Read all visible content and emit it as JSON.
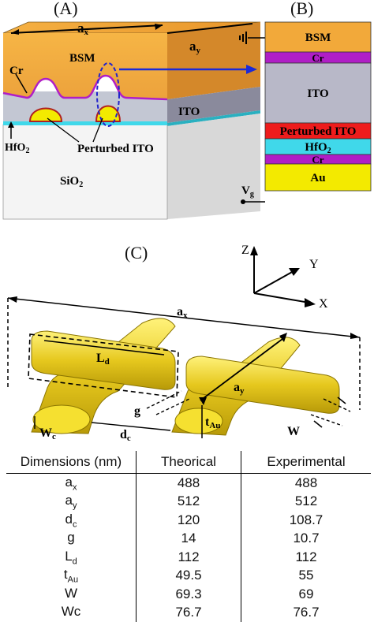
{
  "panels": {
    "a": "(A)",
    "b": "(B)",
    "c": "(C)"
  },
  "panel_a": {
    "ax": "a",
    "ax_sub": "x",
    "ay": "a",
    "ay_sub": "y",
    "bsm": "BSM",
    "cr": "Cr",
    "ito": "ITO",
    "hfo2": "HfO",
    "hfo2_sub": "2",
    "perturbed_ito": "Perturbed ITO",
    "sio2": "SiO",
    "sio2_sub": "2"
  },
  "panel_b": {
    "layers": [
      {
        "label": "BSM",
        "color": "#f2a93a"
      },
      {
        "label": "Cr",
        "color": "#b01ec6"
      },
      {
        "label": "ITO",
        "color": "#b8b8c8"
      },
      {
        "label": "Perturbed ITO",
        "color": "#ee1c1c"
      },
      {
        "label": "HfO2",
        "color": "#40d8ea"
      },
      {
        "label": "Cr",
        "color": "#b01ec6"
      },
      {
        "label": "Au",
        "color": "#f3ea00"
      }
    ],
    "vg": "V",
    "vg_sub": "g"
  },
  "panel_c": {
    "axes": {
      "z": "Z",
      "y": "Y",
      "x": "X"
    },
    "ax": "a",
    "ax_sub": "x",
    "ay": "a",
    "ay_sub": "y",
    "ld": "L",
    "ld_sub": "d",
    "g": "g",
    "wc": "W",
    "wc_sub": "c",
    "dc": "d",
    "dc_sub": "c",
    "tau": "t",
    "tau_sub": "Au",
    "w": "W"
  },
  "table": {
    "headers": [
      "Dimensions (nm)",
      "Theorical",
      "Experimental"
    ],
    "rows": [
      {
        "name": "a",
        "sub": "x",
        "theorical": "488",
        "experimental": "488"
      },
      {
        "name": "a",
        "sub": "y",
        "theorical": "512",
        "experimental": "512"
      },
      {
        "name": "d",
        "sub": "c",
        "theorical": "120",
        "experimental": "108.7"
      },
      {
        "name": "g",
        "sub": "",
        "theorical": "14",
        "experimental": "10.7"
      },
      {
        "name": "L",
        "sub": "d",
        "theorical": "112",
        "experimental": "112"
      },
      {
        "name": "t",
        "sub": "Au",
        "theorical": "49.5",
        "experimental": "55"
      },
      {
        "name": "W",
        "sub": "",
        "theorical": "69.3",
        "experimental": "69"
      },
      {
        "name": "Wc",
        "sub": "",
        "theorical": "76.7",
        "experimental": "76.7"
      }
    ]
  }
}
